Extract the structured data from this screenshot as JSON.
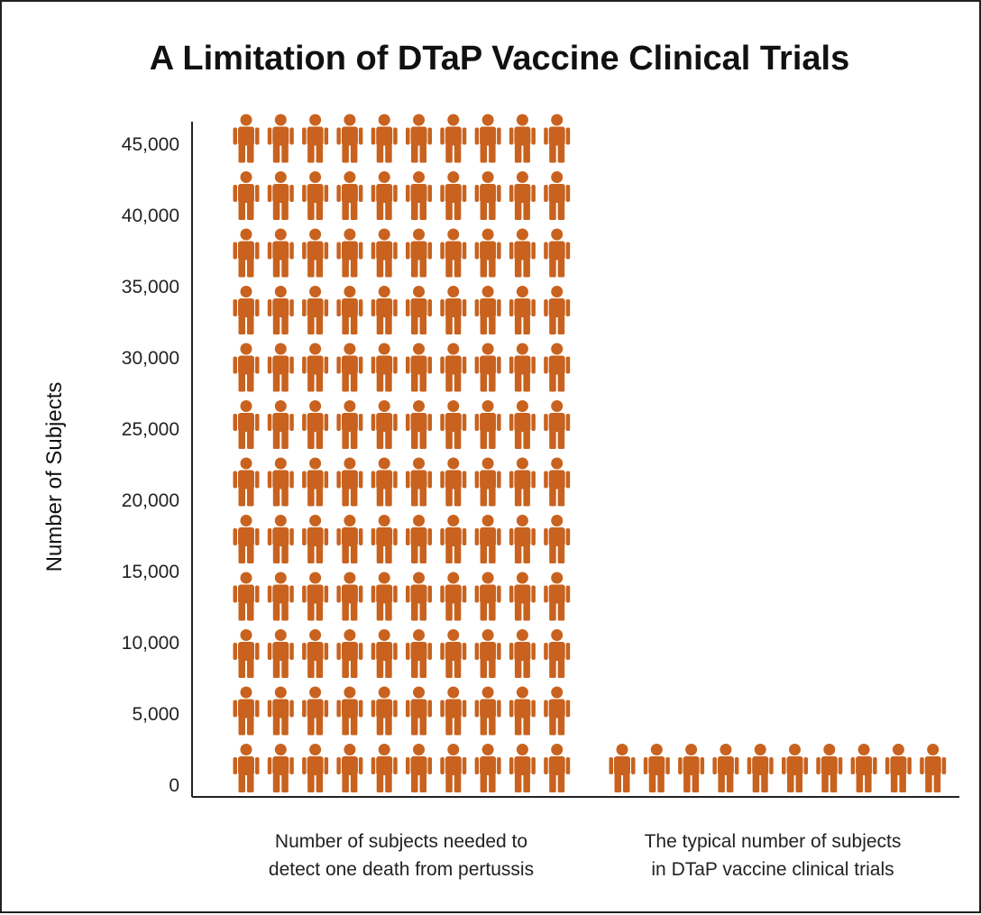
{
  "chart_data": {
    "type": "bar",
    "title": "A Limitation of DTaP Vaccine Clinical Trials",
    "ylabel": "Number of Subjects",
    "xlabel": "",
    "ylim": [
      0,
      45000
    ],
    "yticks": [
      0,
      5000,
      10000,
      15000,
      20000,
      25000,
      30000,
      35000,
      40000,
      45000
    ],
    "ytick_labels": [
      "0",
      "5,000",
      "10,000",
      "15,000",
      "20,000",
      "25,000",
      "30,000",
      "35,000",
      "40,000",
      "45,000"
    ],
    "grid": false,
    "icon": "person-icon",
    "unit_per_icon": 375,
    "categories": [
      {
        "lines": [
          "Number of subjects needed to",
          "detect one death from pertussis"
        ],
        "value": 45000
      },
      {
        "lines": [
          "The typical number of subjects",
          "in DTaP vaccine clinical trials"
        ],
        "value": 3750
      }
    ],
    "colors": {
      "icon": "#c8621e",
      "axis": "#222222"
    }
  }
}
